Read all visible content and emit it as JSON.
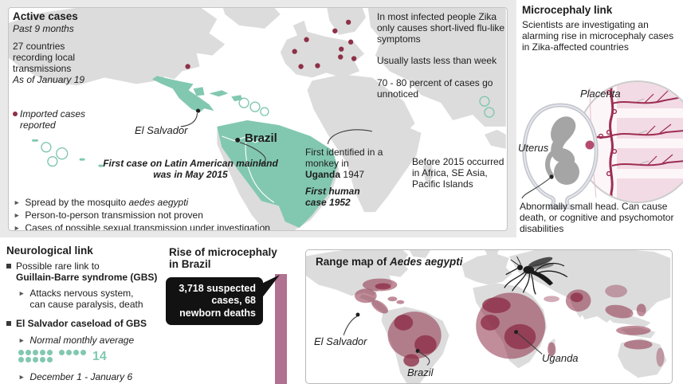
{
  "colors": {
    "teal": "#82c8b0",
    "teal_dark": "#5bb89b",
    "wine": "#8e3048",
    "mauve": "#b17190",
    "land": "#dcdcdc",
    "panel_border": "#c4c4c4",
    "backdrop": "#e9e9e9",
    "ink": "#1d1d1d",
    "vessel": "#9e2d52",
    "pink_light": "#f2dbe4",
    "fetus_gray": "#a5a5a5",
    "uterus_wall": "#c5c8cf"
  },
  "icons": {
    "arrow_bullet": "►",
    "imported_case_dot": "imported-case-dot",
    "country_marker_dot": "country-marker-dot",
    "mosquito": "mosquito-illustration"
  },
  "active_panel": {
    "title": "Active cases",
    "subtitle": "Past 9 months",
    "stat_line": "27 countries recording local transmissions",
    "as_of": "As of January 19",
    "imported_legend": "Imported cases reported",
    "symptoms_1": "In most infected people Zika only causes short-lived flu-like symptoms",
    "symptoms_2": "Usually lasts less than week",
    "symptoms_3": "70 - 80 percent of cases go unnoticed",
    "el_salvador_label": "El Salvador",
    "brazil_label": "Brazil",
    "first_case_note": "First case on Latin American mainland was in May 2015",
    "monkey_note_pre": "First identified in a monkey in ",
    "monkey_note_bold": "Uganda",
    "monkey_note_post": " 1947",
    "first_human_note": "First human case 1952",
    "before_note": "Before 2015 occurred in Africa, SE Asia, Pacific Islands",
    "bullet_1_pre": "Spread by the mosquito ",
    "bullet_1_italic": "aedes aegypti",
    "bullet_2": "Person-to-person transmission not proven",
    "bullet_3": "Cases of possible sexual transmission under investigation"
  },
  "micro_panel": {
    "title": "Microcephaly link",
    "intro": "Scientists are investigating an alarming rise in microcephaly cases in Zika-affected countries",
    "placenta_label": "Placenta",
    "uterus_label": "Uterus",
    "caption": "Abnormally small head. Can cause death, or cognitive and psychomotor disabilities"
  },
  "neuro_panel": {
    "title": "Neurological link",
    "link_pre": "Possible rare link to",
    "link_bold": "Guillain-Barre syndrome (GBS)",
    "link_sub": "Attacks nervous system, can cause paralysis, death",
    "caseload_title": "El Salvador caseload of GBS",
    "average_label": "Normal monthly average",
    "average_value": "14",
    "dots_group1": 10,
    "dots_group2": 4,
    "period_label": "December 1 - January 6"
  },
  "rise_panel": {
    "title": "Rise of microcephaly in Brazil",
    "callout": "3,718 suspected cases, 68 newborn deaths"
  },
  "range_panel": {
    "title_pre": "Range map of ",
    "title_species": "Aedes aegypti",
    "el_salvador_label": "El Salvador",
    "brazil_label": "Brazil",
    "uganda_label": "Uganda"
  },
  "chart_data": [
    {
      "type": "bar",
      "title": "Rise of microcephaly in Brazil",
      "categories": [
        "Suspected microcephaly cases",
        "Newborn deaths"
      ],
      "values": [
        3718,
        68
      ],
      "annotation": "3,718 suspected cases, 68 newborn deaths",
      "notes": "Single tall mauve bar cropped at bottom edge; black callout bubble points to bar top"
    },
    {
      "type": "bar",
      "title": "El Salvador caseload of GBS - Normal monthly average",
      "categories": [
        "Normal monthly average"
      ],
      "values": [
        14
      ],
      "notes": "Rendered as 14 teal pictogram dots (group of 10 plus group of 4) with teal numeral 14"
    }
  ]
}
